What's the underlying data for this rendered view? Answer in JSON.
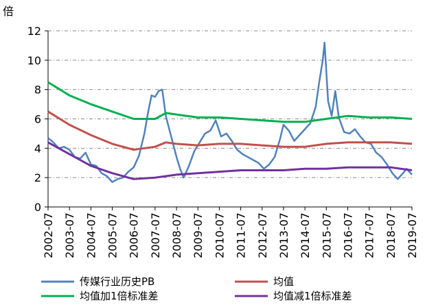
{
  "chart_data": {
    "type": "line",
    "y_unit": "倍",
    "ylim": [
      0,
      12
    ],
    "y_ticks": [
      "0",
      "2",
      "4",
      "6",
      "8",
      "10",
      "12"
    ],
    "x_ticks": [
      "2002-07",
      "2003-07",
      "2004-07",
      "2005-07",
      "2006-07",
      "2007-07",
      "2008-07",
      "2009-07",
      "2010-07",
      "2011-07",
      "2012-07",
      "2013-07",
      "2014-07",
      "2015-07",
      "2016-07",
      "2017-07",
      "2018-07",
      "2019-07"
    ],
    "x_range": [
      "2002-07",
      "2019-07"
    ],
    "grid": "horizontal dashed",
    "legend_position": "bottom",
    "series": [
      {
        "name": "传媒行业历史PB",
        "color": "#4f81bd",
        "points": [
          [
            "2002-07",
            4.7
          ],
          [
            "2002-10",
            4.4
          ],
          [
            "2003-01",
            4.0
          ],
          [
            "2003-04",
            4.1
          ],
          [
            "2003-07",
            3.9
          ],
          [
            "2003-10",
            3.4
          ],
          [
            "2004-01",
            3.3
          ],
          [
            "2004-04",
            3.7
          ],
          [
            "2004-07",
            2.9
          ],
          [
            "2004-10",
            2.8
          ],
          [
            "2005-01",
            2.3
          ],
          [
            "2005-04",
            2.1
          ],
          [
            "2005-07",
            1.7
          ],
          [
            "2005-10",
            1.9
          ],
          [
            "2006-01",
            2.0
          ],
          [
            "2006-04",
            2.4
          ],
          [
            "2006-07",
            2.7
          ],
          [
            "2006-10",
            3.5
          ],
          [
            "2007-01",
            5.0
          ],
          [
            "2007-03",
            6.4
          ],
          [
            "2007-05",
            7.6
          ],
          [
            "2007-07",
            7.5
          ],
          [
            "2007-09",
            7.9
          ],
          [
            "2007-11",
            8.0
          ],
          [
            "2008-01",
            6.2
          ],
          [
            "2008-04",
            4.8
          ],
          [
            "2008-07",
            3.4
          ],
          [
            "2008-09",
            2.6
          ],
          [
            "2008-11",
            2.0
          ],
          [
            "2009-02",
            2.8
          ],
          [
            "2009-05",
            3.8
          ],
          [
            "2009-08",
            4.4
          ],
          [
            "2009-11",
            5.0
          ],
          [
            "2010-02",
            5.2
          ],
          [
            "2010-05",
            5.9
          ],
          [
            "2010-08",
            4.8
          ],
          [
            "2010-11",
            5.0
          ],
          [
            "2011-02",
            4.5
          ],
          [
            "2011-05",
            3.9
          ],
          [
            "2011-08",
            3.6
          ],
          [
            "2011-11",
            3.4
          ],
          [
            "2012-02",
            3.2
          ],
          [
            "2012-05",
            3.0
          ],
          [
            "2012-08",
            2.6
          ],
          [
            "2012-11",
            2.9
          ],
          [
            "2013-02",
            3.4
          ],
          [
            "2013-05",
            4.6
          ],
          [
            "2013-07",
            5.6
          ],
          [
            "2013-10",
            5.2
          ],
          [
            "2014-01",
            4.5
          ],
          [
            "2014-04",
            4.9
          ],
          [
            "2014-07",
            5.3
          ],
          [
            "2014-10",
            5.7
          ],
          [
            "2015-01",
            6.8
          ],
          [
            "2015-03",
            8.5
          ],
          [
            "2015-05",
            10.0
          ],
          [
            "2015-06",
            11.2
          ],
          [
            "2015-08",
            7.2
          ],
          [
            "2015-10",
            6.2
          ],
          [
            "2015-12",
            7.9
          ],
          [
            "2016-02",
            6.1
          ],
          [
            "2016-05",
            5.1
          ],
          [
            "2016-08",
            5.0
          ],
          [
            "2016-11",
            5.3
          ],
          [
            "2017-02",
            4.8
          ],
          [
            "2017-05",
            4.4
          ],
          [
            "2017-08",
            4.3
          ],
          [
            "2017-11",
            3.7
          ],
          [
            "2018-02",
            3.4
          ],
          [
            "2018-05",
            2.9
          ],
          [
            "2018-08",
            2.3
          ],
          [
            "2018-11",
            1.9
          ],
          [
            "2019-02",
            2.3
          ],
          [
            "2019-04",
            2.6
          ],
          [
            "2019-07",
            2.2
          ]
        ]
      },
      {
        "name": "均值",
        "color": "#c0504d",
        "points": [
          [
            "2002-07",
            6.5
          ],
          [
            "2003-07",
            5.6
          ],
          [
            "2004-07",
            4.9
          ],
          [
            "2005-07",
            4.3
          ],
          [
            "2006-07",
            3.9
          ],
          [
            "2007-07",
            4.1
          ],
          [
            "2008-01",
            4.4
          ],
          [
            "2008-07",
            4.3
          ],
          [
            "2009-07",
            4.2
          ],
          [
            "2010-07",
            4.3
          ],
          [
            "2011-07",
            4.3
          ],
          [
            "2012-07",
            4.2
          ],
          [
            "2013-07",
            4.1
          ],
          [
            "2014-07",
            4.1
          ],
          [
            "2015-07",
            4.3
          ],
          [
            "2016-07",
            4.4
          ],
          [
            "2017-07",
            4.4
          ],
          [
            "2018-07",
            4.4
          ],
          [
            "2019-07",
            4.3
          ]
        ]
      },
      {
        "name": "均值加1倍标准差",
        "color": "#00b050",
        "points": [
          [
            "2002-07",
            8.5
          ],
          [
            "2003-07",
            7.6
          ],
          [
            "2004-07",
            7.0
          ],
          [
            "2005-07",
            6.5
          ],
          [
            "2006-07",
            6.0
          ],
          [
            "2007-07",
            6.0
          ],
          [
            "2008-01",
            6.4
          ],
          [
            "2008-07",
            6.3
          ],
          [
            "2009-07",
            6.1
          ],
          [
            "2010-07",
            6.1
          ],
          [
            "2011-07",
            6.0
          ],
          [
            "2012-07",
            5.9
          ],
          [
            "2013-07",
            5.8
          ],
          [
            "2014-07",
            5.8
          ],
          [
            "2015-07",
            6.0
          ],
          [
            "2016-07",
            6.2
          ],
          [
            "2017-07",
            6.1
          ],
          [
            "2018-07",
            6.1
          ],
          [
            "2019-07",
            6.0
          ]
        ]
      },
      {
        "name": "均值减1倍标准差",
        "color": "#7030a0",
        "points": [
          [
            "2002-07",
            4.4
          ],
          [
            "2003-07",
            3.6
          ],
          [
            "2004-07",
            2.8
          ],
          [
            "2005-07",
            2.3
          ],
          [
            "2006-07",
            1.9
          ],
          [
            "2007-07",
            2.0
          ],
          [
            "2008-07",
            2.2
          ],
          [
            "2009-07",
            2.3
          ],
          [
            "2010-07",
            2.4
          ],
          [
            "2011-07",
            2.5
          ],
          [
            "2012-07",
            2.5
          ],
          [
            "2013-07",
            2.5
          ],
          [
            "2014-07",
            2.6
          ],
          [
            "2015-07",
            2.6
          ],
          [
            "2016-07",
            2.7
          ],
          [
            "2017-07",
            2.7
          ],
          [
            "2018-07",
            2.7
          ],
          [
            "2019-07",
            2.5
          ]
        ]
      }
    ]
  }
}
